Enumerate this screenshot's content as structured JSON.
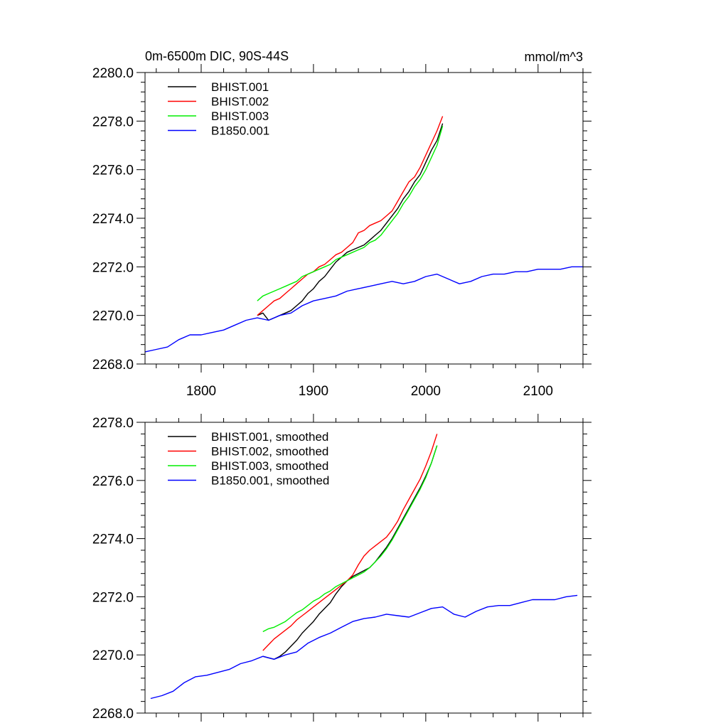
{
  "figure": {
    "title": "0m-6500m DIC, 90S-44S",
    "units": "mmol/m^3"
  },
  "chart_data": [
    {
      "type": "line",
      "title": "0m-6500m DIC, 90S-44S",
      "units_label": "mmol/m^3",
      "xlim": [
        1750,
        2140
      ],
      "ylim": [
        2268,
        2280
      ],
      "x_ticks": [
        1800,
        1900,
        2000,
        2100
      ],
      "x_tick_labels": [
        "1800",
        "1900",
        "2000",
        "2100"
      ],
      "y_ticks": [
        2268,
        2270,
        2272,
        2274,
        2276,
        2278,
        2280
      ],
      "y_tick_labels": [
        "2268.0",
        "2270.0",
        "2272.0",
        "2274.0",
        "2276.0",
        "2278.0",
        "2280.0"
      ],
      "grid": false,
      "legend_position": "top-left",
      "series": [
        {
          "name": "BHIST.001",
          "color": "#000000",
          "x": [
            1850,
            1855,
            1860,
            1865,
            1870,
            1875,
            1880,
            1885,
            1890,
            1895,
            1900,
            1905,
            1910,
            1915,
            1920,
            1925,
            1930,
            1935,
            1940,
            1945,
            1950,
            1955,
            1960,
            1965,
            1970,
            1975,
            1980,
            1985,
            1990,
            1995,
            2000,
            2005,
            2010,
            2015
          ],
          "y": [
            2270.0,
            2270.1,
            2269.8,
            2269.9,
            2270.0,
            2270.1,
            2270.2,
            2270.4,
            2270.6,
            2270.9,
            2271.1,
            2271.4,
            2271.6,
            2271.9,
            2272.2,
            2272.4,
            2272.6,
            2272.7,
            2272.8,
            2272.9,
            2273.1,
            2273.3,
            2273.5,
            2273.8,
            2274.1,
            2274.4,
            2274.8,
            2275.1,
            2275.5,
            2275.8,
            2276.3,
            2276.8,
            2277.2,
            2277.9
          ]
        },
        {
          "name": "BHIST.002",
          "color": "#ff0000",
          "x": [
            1850,
            1855,
            1860,
            1865,
            1870,
            1875,
            1880,
            1885,
            1890,
            1895,
            1900,
            1905,
            1910,
            1915,
            1920,
            1925,
            1930,
            1935,
            1940,
            1945,
            1950,
            1955,
            1960,
            1965,
            1970,
            1975,
            1980,
            1985,
            1990,
            1995,
            2000,
            2005,
            2010,
            2015
          ],
          "y": [
            2270.0,
            2270.2,
            2270.4,
            2270.6,
            2270.7,
            2270.9,
            2271.1,
            2271.3,
            2271.5,
            2271.7,
            2271.8,
            2272.0,
            2272.1,
            2272.3,
            2272.5,
            2272.6,
            2272.8,
            2273.0,
            2273.4,
            2273.5,
            2273.7,
            2273.8,
            2273.9,
            2274.1,
            2274.3,
            2274.7,
            2275.1,
            2275.5,
            2275.7,
            2276.1,
            2276.6,
            2277.1,
            2277.6,
            2278.2
          ]
        },
        {
          "name": "BHIST.003",
          "color": "#00ee00",
          "x": [
            1850,
            1855,
            1860,
            1865,
            1870,
            1875,
            1880,
            1885,
            1890,
            1895,
            1900,
            1905,
            1910,
            1915,
            1920,
            1925,
            1930,
            1935,
            1940,
            1945,
            1950,
            1955,
            1960,
            1965,
            1970,
            1975,
            1980,
            1985,
            1990,
            1995,
            2000,
            2005,
            2010,
            2015
          ],
          "y": [
            2270.6,
            2270.8,
            2270.9,
            2271.0,
            2271.1,
            2271.2,
            2271.3,
            2271.4,
            2271.6,
            2271.7,
            2271.8,
            2271.9,
            2272.0,
            2272.1,
            2272.3,
            2272.4,
            2272.5,
            2272.6,
            2272.7,
            2272.8,
            2273.0,
            2273.1,
            2273.3,
            2273.6,
            2273.9,
            2274.2,
            2274.6,
            2274.9,
            2275.3,
            2275.6,
            2276.0,
            2276.5,
            2277.0,
            2277.8
          ]
        },
        {
          "name": "B1850.001",
          "color": "#0000ff",
          "x": [
            1750,
            1760,
            1770,
            1780,
            1790,
            1800,
            1810,
            1820,
            1830,
            1840,
            1850,
            1860,
            1870,
            1880,
            1890,
            1900,
            1910,
            1920,
            1930,
            1940,
            1950,
            1960,
            1970,
            1980,
            1990,
            2000,
            2010,
            2020,
            2030,
            2040,
            2050,
            2060,
            2070,
            2080,
            2090,
            2100,
            2110,
            2120,
            2130,
            2140
          ],
          "y": [
            2268.5,
            2268.6,
            2268.7,
            2269.0,
            2269.2,
            2269.2,
            2269.3,
            2269.4,
            2269.6,
            2269.8,
            2269.9,
            2269.8,
            2270.0,
            2270.1,
            2270.4,
            2270.6,
            2270.7,
            2270.8,
            2271.0,
            2271.1,
            2271.2,
            2271.3,
            2271.4,
            2271.3,
            2271.4,
            2271.6,
            2271.7,
            2271.5,
            2271.3,
            2271.4,
            2271.6,
            2271.7,
            2271.7,
            2271.8,
            2271.8,
            2271.9,
            2271.9,
            2271.9,
            2272.0,
            2272.0
          ]
        }
      ]
    },
    {
      "type": "line",
      "xlim": [
        1750,
        2140
      ],
      "ylim": [
        2268,
        2278
      ],
      "x_ticks": [
        1800,
        1900,
        2000,
        2100
      ],
      "y_ticks": [
        2268,
        2270,
        2272,
        2274,
        2276,
        2278
      ],
      "y_tick_labels": [
        "2268.0",
        "2270.0",
        "2272.0",
        "2274.0",
        "2276.0",
        "2278.0"
      ],
      "grid": false,
      "legend_position": "top-left",
      "series": [
        {
          "name": "BHIST.001, smoothed",
          "color": "#000000",
          "x": [
            1855,
            1860,
            1865,
            1870,
            1875,
            1880,
            1885,
            1890,
            1895,
            1900,
            1905,
            1910,
            1915,
            1920,
            1925,
            1930,
            1935,
            1940,
            1945,
            1950,
            1955,
            1960,
            1965,
            1970,
            1975,
            1980,
            1985,
            1990,
            1995,
            2000,
            2005,
            2010
          ],
          "y": [
            2269.95,
            2269.9,
            2269.85,
            2269.95,
            2270.1,
            2270.3,
            2270.5,
            2270.75,
            2270.95,
            2271.15,
            2271.4,
            2271.6,
            2271.8,
            2272.1,
            2272.35,
            2272.55,
            2272.7,
            2272.8,
            2272.9,
            2273.0,
            2273.2,
            2273.45,
            2273.7,
            2274.0,
            2274.35,
            2274.7,
            2275.05,
            2275.4,
            2275.75,
            2276.15,
            2276.6,
            2277.2
          ]
        },
        {
          "name": "BHIST.002, smoothed",
          "color": "#ff0000",
          "x": [
            1855,
            1860,
            1865,
            1870,
            1875,
            1880,
            1885,
            1890,
            1895,
            1900,
            1905,
            1910,
            1915,
            1920,
            1925,
            1930,
            1935,
            1940,
            1945,
            1950,
            1955,
            1960,
            1965,
            1970,
            1975,
            1980,
            1985,
            1990,
            1995,
            2000,
            2005,
            2010
          ],
          "y": [
            2270.15,
            2270.35,
            2270.55,
            2270.7,
            2270.85,
            2271.0,
            2271.2,
            2271.35,
            2271.5,
            2271.65,
            2271.8,
            2271.95,
            2272.1,
            2272.25,
            2272.4,
            2272.55,
            2272.75,
            2273.1,
            2273.4,
            2273.6,
            2273.75,
            2273.9,
            2274.05,
            2274.3,
            2274.6,
            2275.0,
            2275.35,
            2275.7,
            2276.05,
            2276.5,
            2277.0,
            2277.6
          ]
        },
        {
          "name": "BHIST.003, smoothed",
          "color": "#00ee00",
          "x": [
            1855,
            1860,
            1865,
            1870,
            1875,
            1880,
            1885,
            1890,
            1895,
            1900,
            1905,
            1910,
            1915,
            1920,
            1925,
            1930,
            1935,
            1940,
            1945,
            1950,
            1955,
            1960,
            1965,
            1970,
            1975,
            1980,
            1985,
            1990,
            1995,
            2000,
            2005,
            2010
          ],
          "y": [
            2270.8,
            2270.9,
            2270.95,
            2271.05,
            2271.15,
            2271.3,
            2271.45,
            2271.55,
            2271.7,
            2271.85,
            2271.95,
            2272.1,
            2272.2,
            2272.35,
            2272.45,
            2272.55,
            2272.65,
            2272.75,
            2272.85,
            2273.0,
            2273.2,
            2273.4,
            2273.65,
            2273.95,
            2274.3,
            2274.65,
            2275.0,
            2275.35,
            2275.7,
            2276.1,
            2276.6,
            2277.2
          ]
        },
        {
          "name": "B1850.001, smoothed",
          "color": "#0000ff",
          "x": [
            1755,
            1765,
            1775,
            1785,
            1795,
            1805,
            1815,
            1825,
            1835,
            1845,
            1855,
            1865,
            1875,
            1885,
            1895,
            1905,
            1915,
            1925,
            1935,
            1945,
            1955,
            1965,
            1975,
            1985,
            1995,
            2005,
            2015,
            2025,
            2035,
            2045,
            2055,
            2065,
            2075,
            2085,
            2095,
            2105,
            2115,
            2125,
            2135
          ],
          "y": [
            2268.5,
            2268.6,
            2268.75,
            2269.05,
            2269.25,
            2269.3,
            2269.4,
            2269.5,
            2269.7,
            2269.8,
            2269.95,
            2269.85,
            2270.0,
            2270.1,
            2270.4,
            2270.6,
            2270.75,
            2270.95,
            2271.15,
            2271.25,
            2271.3,
            2271.4,
            2271.35,
            2271.3,
            2271.45,
            2271.6,
            2271.65,
            2271.4,
            2271.3,
            2271.5,
            2271.65,
            2271.7,
            2271.7,
            2271.8,
            2271.9,
            2271.9,
            2271.9,
            2272.0,
            2272.05
          ]
        }
      ]
    }
  ]
}
